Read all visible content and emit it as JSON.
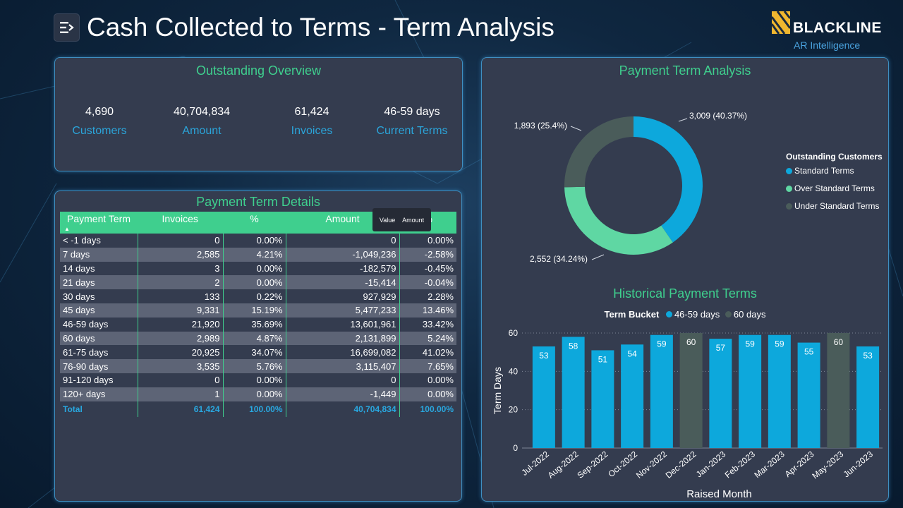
{
  "title": "Cash Collected to Terms - Term Analysis",
  "logo": {
    "brand": "BLACKLINE",
    "subtitle": "AR Intelligence"
  },
  "overview": {
    "title": "Outstanding Overview",
    "kpis": [
      {
        "value": "4,690",
        "label": "Customers"
      },
      {
        "value": "40,704,834",
        "label": "Amount"
      },
      {
        "value": "61,424",
        "label": "Invoices"
      },
      {
        "value": "46-59 days",
        "label": "Current Terms"
      }
    ]
  },
  "details": {
    "title": "Payment Term Details",
    "headers": [
      "Payment Term",
      "Invoices",
      "%",
      "Amount",
      "%"
    ],
    "tooltip": {
      "label1": "Value",
      "label2": "Amount"
    },
    "rows": [
      [
        "< -1 days",
        "0",
        "0.00%",
        "0",
        "0.00%"
      ],
      [
        "7 days",
        "2,585",
        "4.21%",
        "-1,049,236",
        "-2.58%"
      ],
      [
        "14 days",
        "3",
        "0.00%",
        "-182,579",
        "-0.45%"
      ],
      [
        "21 days",
        "2",
        "0.00%",
        "-15,414",
        "-0.04%"
      ],
      [
        "30 days",
        "133",
        "0.22%",
        "927,929",
        "2.28%"
      ],
      [
        "45 days",
        "9,331",
        "15.19%",
        "5,477,233",
        "13.46%"
      ],
      [
        "46-59 days",
        "21,920",
        "35.69%",
        "13,601,961",
        "33.42%"
      ],
      [
        "60 days",
        "2,989",
        "4.87%",
        "2,131,899",
        "5.24%"
      ],
      [
        "61-75 days",
        "20,925",
        "34.07%",
        "16,699,082",
        "41.02%"
      ],
      [
        "76-90 days",
        "3,535",
        "5.76%",
        "3,115,407",
        "7.65%"
      ],
      [
        "91-120 days",
        "0",
        "0.00%",
        "0",
        "0.00%"
      ],
      [
        "120+ days",
        "1",
        "0.00%",
        "-1,449",
        "0.00%"
      ]
    ],
    "total": [
      "Total",
      "61,424",
      "100.00%",
      "40,704,834",
      "100.00%"
    ]
  },
  "analysis": {
    "title": "Payment Term Analysis",
    "legend_title": "Outstanding Customers"
  },
  "history": {
    "title": "Historical Payment Terms",
    "legend_label": "Term Bucket"
  },
  "colors": {
    "standard": "#0da8dc",
    "over": "#5fd7a3",
    "under": "#4a5c5a",
    "accent_green": "#3fcf8e"
  },
  "chart_data": [
    {
      "type": "pie",
      "title": "Payment Term Analysis",
      "legend_title": "Outstanding Customers",
      "slices": [
        {
          "name": "Standard Terms",
          "value": 3009,
          "label": "3,009 (40.37%)",
          "color": "#0da8dc"
        },
        {
          "name": "Over Standard Terms",
          "value": 2552,
          "label": "2,552 (34.24%)",
          "color": "#5fd7a3"
        },
        {
          "name": "Under Standard Terms",
          "value": 1893,
          "label": "1,893 (25.4%)",
          "color": "#4a5c5a"
        }
      ]
    },
    {
      "type": "bar",
      "title": "Historical Payment Terms",
      "xlabel": "Raised Month",
      "ylabel": "Term Days",
      "ylim": [
        0,
        60
      ],
      "yticks": [
        0,
        20,
        40,
        60
      ],
      "legend": [
        {
          "name": "46-59 days",
          "color": "#0da8dc"
        },
        {
          "name": "60 days",
          "color": "#4a5c5a"
        }
      ],
      "categories": [
        "Jul-2022",
        "Aug-2022",
        "Sep-2022",
        "Oct-2022",
        "Nov-2022",
        "Dec-2022",
        "Jan-2023",
        "Feb-2023",
        "Mar-2023",
        "Apr-2023",
        "May-2023",
        "Jun-2023"
      ],
      "values": [
        53,
        58,
        51,
        54,
        59,
        60,
        57,
        59,
        59,
        55,
        60,
        53
      ],
      "buckets": [
        "46-59 days",
        "46-59 days",
        "46-59 days",
        "46-59 days",
        "46-59 days",
        "60 days",
        "46-59 days",
        "46-59 days",
        "46-59 days",
        "46-59 days",
        "60 days",
        "46-59 days"
      ]
    }
  ]
}
